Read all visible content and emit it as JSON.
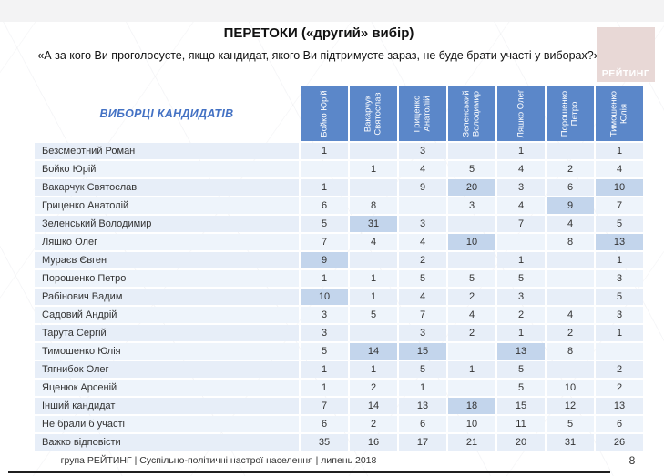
{
  "header": {
    "title": "ПЕРЕТОКИ («другий» вибір)",
    "subtitle": "«А за кого Ви проголосуєте, якщо кандидат, якого Ви підтримуєте зараз, не буде брати участі у виборах?»",
    "logo_text": "РЕЙТИНГ",
    "logo_bg": "#e8d8d6"
  },
  "chart_data": {
    "type": "table",
    "title": "ПЕРЕТОКИ («другий» вибір)",
    "corner_label": "ВИБОРЦІ КАНДИДАТІВ",
    "columns": [
      "Бойко Юрій",
      "Вакарчук Святослав",
      "Гриценко Анатолій",
      "Зеленський Володимир",
      "Ляшко Олег",
      "Порошенко Петро",
      "Тимошенко Юлія"
    ],
    "rows": [
      {
        "label": "Безсмертний Роман",
        "values": [
          1,
          null,
          3,
          null,
          1,
          null,
          1
        ]
      },
      {
        "label": "Бойко Юрій",
        "values": [
          null,
          1,
          4,
          5,
          4,
          2,
          4
        ]
      },
      {
        "label": "Вакарчук Святослав",
        "values": [
          1,
          null,
          9,
          20,
          3,
          6,
          10
        ]
      },
      {
        "label": "Гриценко Анатолій",
        "values": [
          6,
          8,
          null,
          3,
          4,
          9,
          7
        ]
      },
      {
        "label": "Зеленський Володимир",
        "values": [
          5,
          31,
          3,
          null,
          7,
          4,
          5
        ]
      },
      {
        "label": "Ляшко Олег",
        "values": [
          7,
          4,
          4,
          10,
          null,
          8,
          13
        ]
      },
      {
        "label": "Мураєв Євген",
        "values": [
          9,
          null,
          2,
          null,
          1,
          null,
          1
        ]
      },
      {
        "label": "Порошенко Петро",
        "values": [
          1,
          1,
          5,
          5,
          5,
          null,
          3
        ]
      },
      {
        "label": "Рабінович Вадим",
        "values": [
          10,
          1,
          4,
          2,
          3,
          null,
          5
        ]
      },
      {
        "label": "Садовий Андрій",
        "values": [
          3,
          5,
          7,
          4,
          2,
          4,
          3
        ]
      },
      {
        "label": "Тарута Сергій",
        "values": [
          3,
          null,
          3,
          2,
          1,
          2,
          1
        ]
      },
      {
        "label": "Тимошенко Юлія",
        "values": [
          5,
          14,
          15,
          null,
          13,
          8,
          null
        ]
      },
      {
        "label": "Тягнибок Олег",
        "values": [
          1,
          1,
          5,
          1,
          5,
          null,
          2
        ]
      },
      {
        "label": "Яценюк Арсеній",
        "values": [
          1,
          2,
          1,
          null,
          5,
          10,
          2
        ]
      },
      {
        "label": "Інший кандидат",
        "values": [
          7,
          14,
          13,
          18,
          15,
          12,
          13
        ]
      },
      {
        "label": "Не брали б участі",
        "values": [
          6,
          2,
          6,
          10,
          11,
          5,
          6
        ]
      },
      {
        "label": "Важко відповісти",
        "values": [
          35,
          16,
          17,
          21,
          20,
          31,
          26
        ]
      }
    ],
    "highlight_cells": [
      [
        2,
        3
      ],
      [
        2,
        6
      ],
      [
        3,
        5
      ],
      [
        4,
        1
      ],
      [
        5,
        3
      ],
      [
        5,
        6
      ],
      [
        6,
        0
      ],
      [
        8,
        0
      ],
      [
        11,
        1
      ],
      [
        11,
        2
      ],
      [
        11,
        4
      ],
      [
        14,
        3
      ]
    ],
    "colors": {
      "header_bg": "#5b87c9",
      "row_bg": "#e7eef8",
      "row_bg_alt": "#eef4fb",
      "highlight_bg": "#c3d5ec",
      "corner_text": "#4472c4"
    }
  },
  "footer": {
    "text": "група РЕЙТИНГ | Суспільно-політичні настрої населення | липень 2018",
    "page_number": "8"
  }
}
